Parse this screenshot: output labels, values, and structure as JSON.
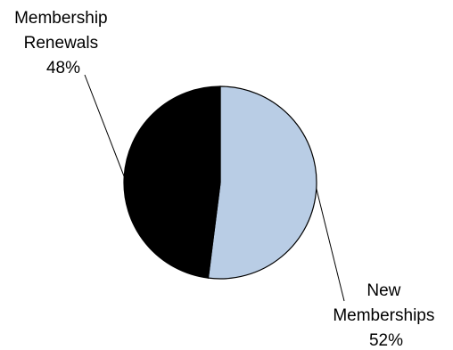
{
  "chart_data": {
    "type": "pie",
    "slices": [
      {
        "label_lines": [
          "New",
          "Memberships"
        ],
        "value": 52,
        "value_label": "52%",
        "color": "#b9cde5"
      },
      {
        "label_lines": [
          "Membership",
          "Renewals"
        ],
        "value": 48,
        "value_label": "48%",
        "color": "#000000"
      }
    ],
    "start_angle_deg": 0,
    "direction": "clockwise",
    "slice_border_color": "#000000",
    "leader_line_color": "#000000"
  }
}
